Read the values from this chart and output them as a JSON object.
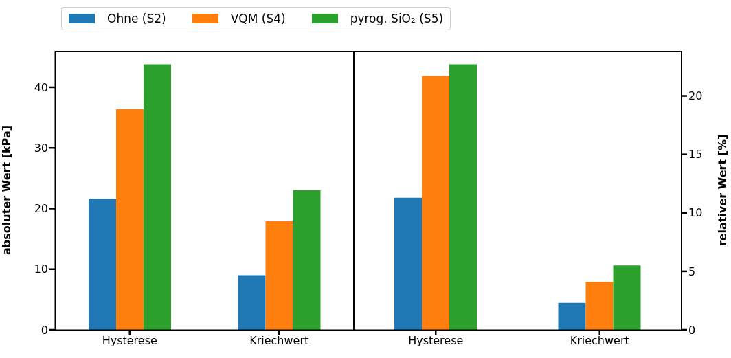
{
  "chart_data": [
    {
      "type": "bar",
      "categories": [
        "Hysterese",
        "Kriechwert"
      ],
      "ylabel": "absoluter Wert [kPa]",
      "ylim": [
        0,
        46
      ],
      "yticks": [
        0,
        10,
        20,
        30,
        40
      ],
      "legend": "top",
      "series": [
        {
          "name": "Ohne (S2)",
          "color": "#1f77b4",
          "values": [
            21.6,
            9.0
          ]
        },
        {
          "name": "VQM (S4)",
          "color": "#ff7f0e",
          "values": [
            36.4,
            17.9
          ]
        },
        {
          "name": "pyrog. SiO₂ (S5)",
          "color": "#2ca02c",
          "values": [
            43.8,
            23.0
          ]
        }
      ]
    },
    {
      "type": "bar",
      "categories": [
        "Hysterese",
        "Kriechwert"
      ],
      "y2label": "relativer Wert [%]",
      "y2lim": [
        0,
        23.85
      ],
      "y2ticks": [
        0,
        5,
        10,
        15,
        20
      ],
      "series": [
        {
          "color": "#1f77b4",
          "axis": "y2",
          "values": [
            11.3,
            2.3
          ]
        },
        {
          "color": "#ff7f0e",
          "axis": "y2",
          "values": [
            21.7,
            4.1
          ]
        },
        {
          "color": "#2ca02c",
          "axis": "y2",
          "values": [
            22.7,
            5.5
          ]
        }
      ]
    }
  ]
}
